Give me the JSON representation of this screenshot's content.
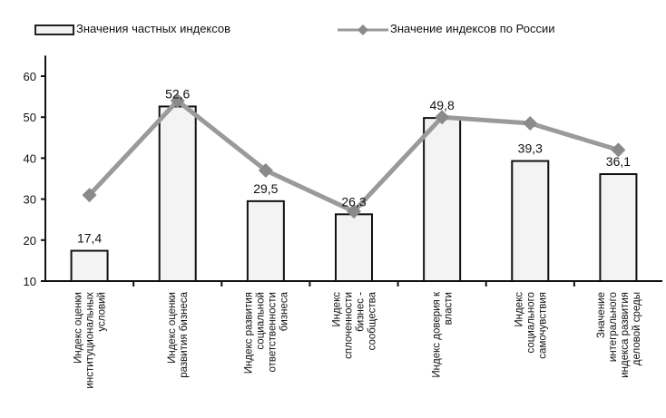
{
  "chart_data": {
    "type": "bar",
    "categories": [
      "Индекс оценки институциональных условий",
      "Индекс оценки развития бизнеса",
      "Индекс развития социальной ответственности бизнеса",
      "Индекс сплоченности бизнес - сообщества",
      "Индекс доверия к власти",
      "Индекс социального самочувствия",
      "Значение интегрального индекса развития деловой среды"
    ],
    "category_lines": [
      [
        "Индекс оценки",
        "институциональных",
        "условий"
      ],
      [
        "Индекс оценки",
        "развития бизнеса"
      ],
      [
        "Индекс развития",
        "социальной",
        "ответственности",
        "бизнеса"
      ],
      [
        "Индекс",
        "сплоченности",
        "бизнес -",
        "сообщества"
      ],
      [
        "Индекс доверия к",
        "власти"
      ],
      [
        "Индекс",
        "социального",
        "самочувствия"
      ],
      [
        "Значение",
        "интегрального",
        "индекса развития",
        "деловой среды"
      ]
    ],
    "series": [
      {
        "name": "Значения частных индексов",
        "kind": "bar",
        "values": [
          17.4,
          52.6,
          29.5,
          26.3,
          49.8,
          39.3,
          36.1
        ],
        "labels": [
          "17,4",
          "52,6",
          "29,5",
          "26,3",
          "49,8",
          "39,3",
          "36,1"
        ]
      },
      {
        "name": "Значение индексов по России",
        "kind": "line",
        "values": [
          31,
          54,
          37,
          27,
          50,
          48.5,
          42
        ]
      }
    ],
    "y_ticks": [
      "10",
      "20",
      "30",
      "40",
      "50",
      "60"
    ],
    "ylim": [
      10,
      65
    ],
    "title": "",
    "xlabel": "",
    "ylabel": "",
    "grid": false,
    "legend_position": "top",
    "colors": {
      "bar_fill": "#f3f3f3",
      "bar_stroke": "#111111",
      "line": "#9a9a9a",
      "marker": "#8a8a8a",
      "axis": "#111111"
    }
  }
}
